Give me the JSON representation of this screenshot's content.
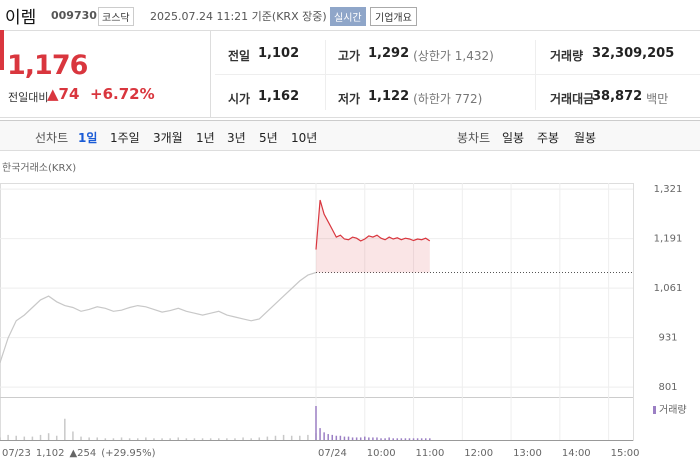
{
  "header": {
    "name": "이렘",
    "code": "009730",
    "market": "코스닥",
    "datetime": "2025.07.24 11:21 기준(KRX 장중)",
    "realtime": "실시간",
    "company_info": "기업개요"
  },
  "price": {
    "current": "1,176",
    "change_label": "전일대비",
    "change": "▲74",
    "change_pct": "+6.72%"
  },
  "stats": [
    {
      "label": "전일",
      "value": "1,102",
      "extra": ""
    },
    {
      "label": "고가",
      "value": "1,292",
      "extra": "(상한가 1,432)"
    },
    {
      "label": "거래량",
      "value": "32,309,205",
      "extra": ""
    },
    {
      "label": "시가",
      "value": "1,162",
      "extra": ""
    },
    {
      "label": "저가",
      "value": "1,122",
      "extra": "(하한가 772)"
    },
    {
      "label": "거래대금",
      "value": "38,872",
      "extra": "백만"
    }
  ],
  "tabs": {
    "line_label": "선차트",
    "line": [
      "1일",
      "1주일",
      "3개월",
      "1년",
      "3년",
      "5년",
      "10년"
    ],
    "candle_label": "봉차트",
    "candle": [
      "일봉",
      "주봉",
      "월봉"
    ]
  },
  "chart_data": {
    "type": "line",
    "source": "한국거래소(KRX)",
    "ylim": [
      775,
      1337
    ],
    "yticks": [
      {
        "value": 1321,
        "label": "1,321"
      },
      {
        "value": 1191,
        "label": "1,191"
      },
      {
        "value": 1061,
        "label": "1,061"
      },
      931,
      801
    ],
    "xlim": [
      "09:00",
      "15:30"
    ],
    "xticks": [
      {
        "value": "09:00",
        "label": "07/24"
      },
      "10:00",
      "11:00",
      "12:00",
      "13:00",
      "14:00",
      "15:00"
    ],
    "prev_day": "07/23",
    "prev_close": {
      "value": 1102,
      "label": "1,102"
    },
    "prev_change": "▲254",
    "prev_change_pct": "(+29.95%)",
    "volume_label": "거래량",
    "series": [
      {
        "color": "#c8c8c8",
        "values": [
          865,
          930,
          975,
          990,
          1010,
          1030,
          1040,
          1025,
          1015,
          1010,
          1000,
          1005,
          1012,
          1008,
          1000,
          1003,
          1010,
          1015,
          1012,
          1005,
          998,
          1002,
          1008,
          1000,
          995,
          990,
          995,
          1000,
          990,
          985,
          980,
          975,
          980,
          1000,
          1020,
          1040,
          1060,
          1080,
          1095,
          1102
        ],
        "volume": [
          3,
          6,
          5,
          4,
          4,
          6,
          8,
          5,
          25,
          10,
          4,
          3,
          3,
          2,
          2,
          3,
          2,
          2,
          3,
          2,
          2,
          2,
          3,
          2,
          2,
          2,
          2,
          2,
          2,
          2,
          3,
          2,
          3,
          4,
          5,
          6,
          5,
          5,
          6,
          8
        ]
      },
      {
        "color": "#d9363e",
        "x": [
          "09:00",
          "09:05",
          "09:10",
          "09:15",
          "09:20",
          "09:25",
          "09:30",
          "09:35",
          "09:40",
          "09:45",
          "09:50",
          "09:55",
          "10:00",
          "10:05",
          "10:10",
          "10:15",
          "10:20",
          "10:25",
          "10:30",
          "10:35",
          "10:40",
          "10:45",
          "10:50",
          "10:55",
          "11:00",
          "11:05",
          "11:10",
          "11:15",
          "11:20"
        ],
        "values": [
          1162,
          1292,
          1255,
          1235,
          1215,
          1195,
          1200,
          1190,
          1188,
          1195,
          1192,
          1185,
          1190,
          1198,
          1195,
          1200,
          1192,
          1188,
          1195,
          1190,
          1193,
          1188,
          1192,
          1190,
          1186,
          1190,
          1188,
          1192,
          1185
        ],
        "volume": [
          40,
          14,
          9,
          7,
          6,
          5,
          5,
          4,
          4,
          3,
          3,
          3,
          4,
          3,
          3,
          3,
          2,
          2,
          3,
          2,
          2,
          2,
          2,
          2,
          2,
          2,
          2,
          2,
          2
        ]
      }
    ]
  }
}
